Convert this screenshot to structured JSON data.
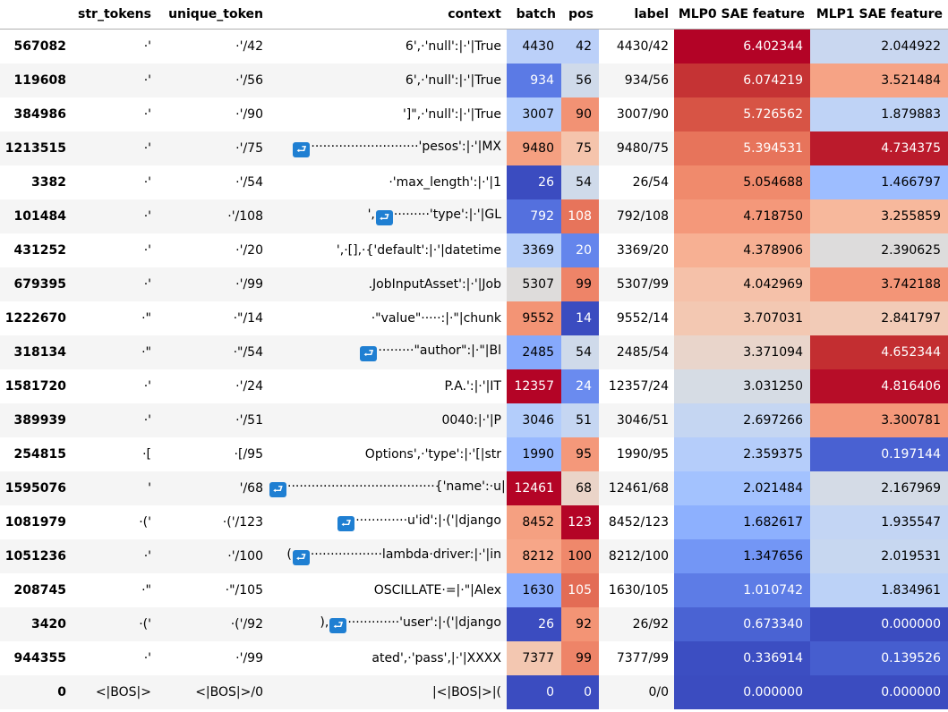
{
  "columns": [
    "",
    "str_tokens",
    "unique_token",
    "context",
    "batch",
    "pos",
    "label",
    "MLP0 SAE feature",
    "MLP1 SAE feature"
  ],
  "newline_icon": "return-arrow-icon",
  "newline_glyph": "⮐",
  "rows": [
    {
      "index": "567082",
      "str_tokens": "·'",
      "unique_token": "·'/42",
      "context": [
        {
          "t": "6',·'null':|·'|True"
        }
      ],
      "batch": "4430",
      "pos": "42",
      "label": "4430/42",
      "mlp0": "6.402344",
      "mlp1": "2.044922",
      "c": [
        "#bbd0f9",
        "#bbd0f9",
        "#b30326",
        "#c9d7f0"
      ]
    },
    {
      "index": "119608",
      "str_tokens": "·'",
      "unique_token": "·'/56",
      "context": [
        {
          "t": "6',·'null':|·'|True"
        }
      ],
      "batch": "934",
      "pos": "56",
      "label": "934/56",
      "mlp0": "6.074219",
      "mlp1": "3.521484",
      "c": [
        "#5b7ae5",
        "#cfdaea",
        "#c53334",
        "#f6a385"
      ]
    },
    {
      "index": "384986",
      "str_tokens": "·'",
      "unique_token": "·'/90",
      "context": [
        {
          "t": "']\",·'null':|·'|True"
        }
      ],
      "batch": "3007",
      "pos": "90",
      "label": "3007/90",
      "mlp0": "5.726562",
      "mlp1": "1.879883",
      "c": [
        "#b2ccfb",
        "#f29274",
        "#d75445",
        "#bfd3f6"
      ]
    },
    {
      "index": "1213515",
      "str_tokens": "·'",
      "unique_token": "·'/75",
      "context": [
        {
          "nl": true
        },
        {
          "t": "···························'pesos':|·'|MX"
        }
      ],
      "batch": "9480",
      "pos": "75",
      "label": "9480/75",
      "mlp0": "5.394531",
      "mlp1": "4.734375",
      "c": [
        "#f5a081",
        "#f5c4ac",
        "#e7745b",
        "#bb1b2c"
      ]
    },
    {
      "index": "3382",
      "str_tokens": "·'",
      "unique_token": "·'/54",
      "context": [
        {
          "t": "·'max_length':|·'|1"
        }
      ],
      "batch": "26",
      "pos": "54",
      "label": "26/54",
      "mlp0": "5.054688",
      "mlp1": "1.466797",
      "c": [
        "#3b4cc0",
        "#cfdaea",
        "#f08a6c",
        "#9dbdff"
      ]
    },
    {
      "index": "101484",
      "str_tokens": "·'",
      "unique_token": "·'/108",
      "context": [
        {
          "t": "',"
        },
        {
          "nl": true
        },
        {
          "t": "·········'type':|·'|GL"
        }
      ],
      "batch": "792",
      "pos": "108",
      "label": "792/108",
      "mlp0": "4.718750",
      "mlp1": "3.255859",
      "c": [
        "#5470de",
        "#e7745b",
        "#f4987a",
        "#f7b89c"
      ]
    },
    {
      "index": "431252",
      "str_tokens": "·'",
      "unique_token": "·'/20",
      "context": [
        {
          "t": "',·[],·{'default':|·'|datetime"
        }
      ],
      "batch": "3369",
      "pos": "20",
      "label": "3369/20",
      "mlp0": "4.378906",
      "mlp1": "2.390625",
      "c": [
        "#b7cff9",
        "#6485ec",
        "#f7b093",
        "#dddcdc"
      ]
    },
    {
      "index": "679395",
      "str_tokens": "·'",
      "unique_token": "·'/99",
      "context": [
        {
          "t": ".JobInputAsset':|·'|Job"
        }
      ],
      "batch": "5307",
      "pos": "99",
      "label": "5307/99",
      "mlp0": "4.042969",
      "mlp1": "3.742188",
      "c": [
        "#dedcdb",
        "#ee8468",
        "#f5c1a9",
        "#f39577"
      ]
    },
    {
      "index": "1222670",
      "str_tokens": "·\"",
      "unique_token": "·\"/14",
      "context": [
        {
          "t": "·\"value\"·····:|·\"|chunk"
        }
      ],
      "batch": "9552",
      "pos": "14",
      "label": "9552/14",
      "mlp0": "3.707031",
      "mlp1": "2.841797",
      "c": [
        "#f39475",
        "#3b4cc0",
        "#f3c8b2",
        "#f2cbb7"
      ]
    },
    {
      "index": "318134",
      "str_tokens": "·\"",
      "unique_token": "·\"/54",
      "context": [
        {
          "nl": true
        },
        {
          "t": "·········\"author\":|·\"|Bl"
        }
      ],
      "batch": "2485",
      "pos": "54",
      "label": "2485/54",
      "mlp0": "3.371094",
      "mlp1": "4.652344",
      "c": [
        "#86a9fc",
        "#cfdaea",
        "#e9d5cb",
        "#c32e31"
      ]
    },
    {
      "index": "1581720",
      "str_tokens": "·'",
      "unique_token": "·'/24",
      "context": [
        {
          "t": "P.A.':|·'|IT"
        }
      ],
      "batch": "12357",
      "pos": "24",
      "label": "12357/24",
      "mlp0": "3.031250",
      "mlp1": "4.816406",
      "c": [
        "#b40426",
        "#6a8bef",
        "#d6dce4",
        "#b70d28"
      ]
    },
    {
      "index": "389939",
      "str_tokens": "·'",
      "unique_token": "·'/51",
      "context": [
        {
          "t": "0040:|·'|P"
        }
      ],
      "batch": "3046",
      "pos": "51",
      "label": "3046/51",
      "mlp0": "2.697266",
      "mlp1": "3.300781",
      "c": [
        "#b3cdfb",
        "#c5d6f2",
        "#c5d6f2",
        "#f4987a"
      ]
    },
    {
      "index": "254815",
      "str_tokens": "·[",
      "unique_token": "·[/95",
      "context": [
        {
          "t": "Options',·'type':|·'[|str"
        }
      ],
      "batch": "1990",
      "pos": "95",
      "label": "1990/95",
      "mlp0": "2.359375",
      "mlp1": "0.197144",
      "c": [
        "#98b9ff",
        "#f4987a",
        "#b5cdfa",
        "#4961d2"
      ]
    },
    {
      "index": "1595076",
      "str_tokens": "'",
      "unique_token": "'/68",
      "context": [
        {
          "nl": true
        },
        {
          "t": "·····································{'name':·u|'|C"
        }
      ],
      "batch": "12461",
      "pos": "68",
      "label": "12461/68",
      "mlp0": "2.021484",
      "mlp1": "2.167969",
      "c": [
        "#b40426",
        "#ead4c8",
        "#a3c2fe",
        "#d4dbe6"
      ]
    },
    {
      "index": "1081979",
      "str_tokens": "·('",
      "unique_token": "·('/123",
      "context": [
        {
          "nl": true
        },
        {
          "t": "·············u'id':|·('|django"
        }
      ],
      "batch": "8452",
      "pos": "123",
      "label": "8452/123",
      "mlp0": "1.682617",
      "mlp1": "1.935547",
      "c": [
        "#f5a081",
        "#b40426",
        "#8db0fe",
        "#c3d5f4"
      ]
    },
    {
      "index": "1051236",
      "str_tokens": "·'",
      "unique_token": "·'/100",
      "context": [
        {
          "t": "("
        },
        {
          "nl": true
        },
        {
          "t": "··················lambda·driver:|·'|in"
        }
      ],
      "batch": "8212",
      "pos": "100",
      "label": "8212/100",
      "mlp0": "1.347656",
      "mlp1": "2.019531",
      "c": [
        "#f7a688",
        "#ef886b",
        "#7396f5",
        "#c7d7f0"
      ]
    },
    {
      "index": "208745",
      "str_tokens": "·\"",
      "unique_token": "·\"/105",
      "context": [
        {
          "t": "OSCILLATE·=|·\"|Alex"
        }
      ],
      "batch": "1630",
      "pos": "105",
      "label": "1630/105",
      "mlp0": "1.010742",
      "mlp1": "1.834961",
      "c": [
        "#88abfd",
        "#e36c55",
        "#5d7ce6",
        "#bcd2f7"
      ]
    },
    {
      "index": "3420",
      "str_tokens": "·('",
      "unique_token": "·('/92",
      "context": [
        {
          "t": "),"
        },
        {
          "nl": true
        },
        {
          "t": "·············'user':|·('|django"
        }
      ],
      "batch": "26",
      "pos": "92",
      "label": "26/92",
      "mlp0": "0.673340",
      "mlp1": "0.000000",
      "c": [
        "#3b4cc0",
        "#f39475",
        "#4a63d3",
        "#3b4cc0"
      ]
    },
    {
      "index": "944355",
      "str_tokens": "·'",
      "unique_token": "·'/99",
      "context": [
        {
          "t": "ated',·'pass',|·'|XXXX"
        }
      ],
      "batch": "7377",
      "pos": "99",
      "label": "7377/99",
      "mlp0": "0.336914",
      "mlp1": "0.139526",
      "c": [
        "#f3c7b1",
        "#ee8468",
        "#3c4ec2",
        "#465ecf"
      ]
    },
    {
      "index": "0",
      "str_tokens": "<|BOS|>",
      "unique_token": "<|BOS|>/0",
      "context": [
        {
          "t": "|<|BOS|>|("
        }
      ],
      "batch": "0",
      "pos": "0",
      "label": "0/0",
      "mlp0": "0.000000",
      "mlp1": "0.000000",
      "c": [
        "#3b4cc0",
        "#3b4cc0",
        "#3b4cc0",
        "#3b4cc0"
      ]
    }
  ]
}
